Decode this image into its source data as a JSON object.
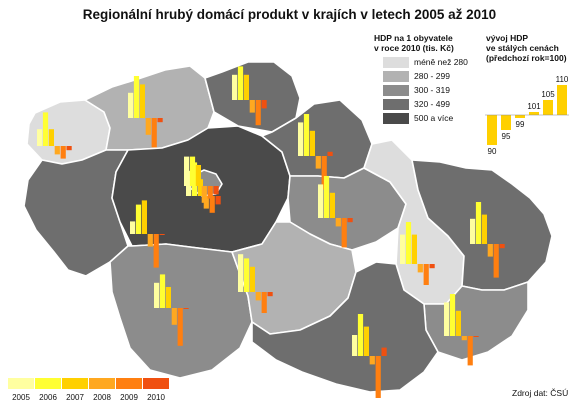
{
  "title": "Regionální hrubý domácí produkt v krajích v letech 2005 až 2010",
  "source": "Zdroj dat: ČSÚ",
  "choropleth_legend": {
    "title_line1": "HDP na 1 obyvatele",
    "title_line2": "v roce 2010 (tis. Kč)",
    "classes": [
      {
        "label": "méně než 280",
        "color": "#dddddd"
      },
      {
        "label": "280 - 299",
        "color": "#b2b2b2"
      },
      {
        "label": "300 - 319",
        "color": "#8c8c8c"
      },
      {
        "label": "320 - 499",
        "color": "#6e6e6e"
      },
      {
        "label": "500 a více",
        "color": "#4a4a4a"
      }
    ]
  },
  "index_legend": {
    "title_line1": "vývoj HDP",
    "title_line2": "ve stálých cenách",
    "title_line3": "(předchozí rok=100)",
    "values": [
      "90",
      "95",
      "99",
      "101",
      "105",
      "110"
    ],
    "bar_values": [
      90,
      95,
      99,
      101,
      105,
      110
    ]
  },
  "years": [
    {
      "label": "2005",
      "color": "#ffffa0"
    },
    {
      "label": "2006",
      "color": "#ffff33"
    },
    {
      "label": "2007",
      "color": "#ffd000"
    },
    {
      "label": "2008",
      "color": "#ffa820"
    },
    {
      "label": "2009",
      "color": "#ff7f10"
    },
    {
      "label": "2010",
      "color": "#f05010"
    }
  ],
  "chart_data": {
    "type": "bar",
    "categories": [
      "2005",
      "2006",
      "2007",
      "2008",
      "2009",
      "2010"
    ],
    "baseline": 100,
    "series": [
      {
        "class": 0,
        "values": [
          104,
          108,
          104,
          98,
          97,
          99
        ]
      },
      {
        "class": 1,
        "values": [
          106,
          110,
          108,
          96,
          93,
          99
        ]
      },
      {
        "class": 3,
        "values": [
          103,
          107,
          108,
          97,
          92,
          100
        ]
      },
      {
        "class": 4,
        "values": [
          106,
          108,
          104,
          97,
          96,
          98
        ]
      },
      {
        "class": 2,
        "values": [
          107,
          107,
          105,
          96,
          97,
          98
        ]
      },
      {
        "class": 3,
        "values": [
          106,
          108,
          106,
          97,
          94,
          98
        ]
      },
      {
        "class": 3,
        "values": [
          108,
          110,
          106,
          97,
          92,
          101
        ]
      },
      {
        "class": 2,
        "values": [
          108,
          110,
          106,
          98,
          93,
          99
        ]
      },
      {
        "class": 2,
        "values": [
          107,
          110,
          107,
          98,
          95,
          99
        ]
      },
      {
        "class": 1,
        "values": [
          109,
          108,
          106,
          98,
          95,
          99
        ]
      },
      {
        "class": 0,
        "values": [
          106,
          108,
          105,
          96,
          91,
          100
        ]
      },
      {
        "class": 3,
        "values": [
          106,
          110,
          107,
          97,
          92,
          99
        ]
      },
      {
        "class": 2,
        "values": [
          108,
          110,
          106,
          99,
          93,
          100
        ]
      },
      {
        "class": 3,
        "values": [
          105,
          110,
          107,
          98,
          90,
          102
        ]
      }
    ]
  }
}
